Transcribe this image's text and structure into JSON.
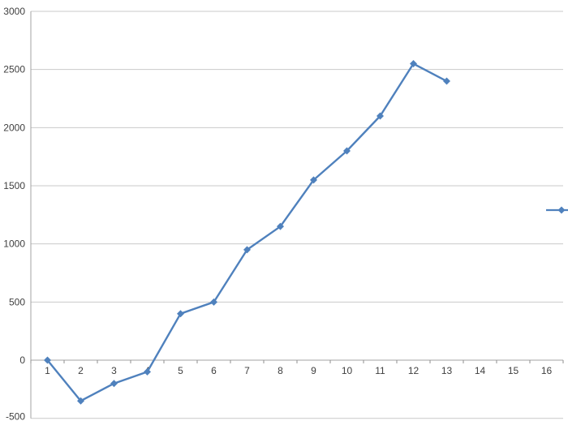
{
  "chart_data": {
    "type": "line",
    "title": "",
    "xlabel": "",
    "ylabel": "",
    "categories": [
      "1",
      "2",
      "3",
      "4",
      "5",
      "6",
      "7",
      "8",
      "9",
      "10",
      "11",
      "12",
      "13",
      "14",
      "15",
      "16"
    ],
    "series": [
      {
        "name": "",
        "marker": "diamond",
        "values": [
          0,
          -350,
          -200,
          -100,
          400,
          500,
          950,
          1150,
          1550,
          1800,
          2100,
          2550,
          2400
        ]
      }
    ],
    "ylim": [
      -500,
      3000
    ],
    "ytick_step": 500,
    "y_tick_labels": [
      "3000",
      "2500",
      "2000",
      "1500",
      "1000",
      "500",
      "0",
      "-500"
    ],
    "grid": "horizontal-only",
    "legend_position": "right-edge-cut-off-marker-glyph-only-visible",
    "x_axis_position_value": 0,
    "colors": {
      "series": "#4F81BD",
      "gridline": "#c9c9c9",
      "axis_line": "#a3a3a3",
      "tick_mark": "#8f8f8f",
      "tick_label": "#3f3f3f",
      "background": "#ffffff"
    }
  }
}
